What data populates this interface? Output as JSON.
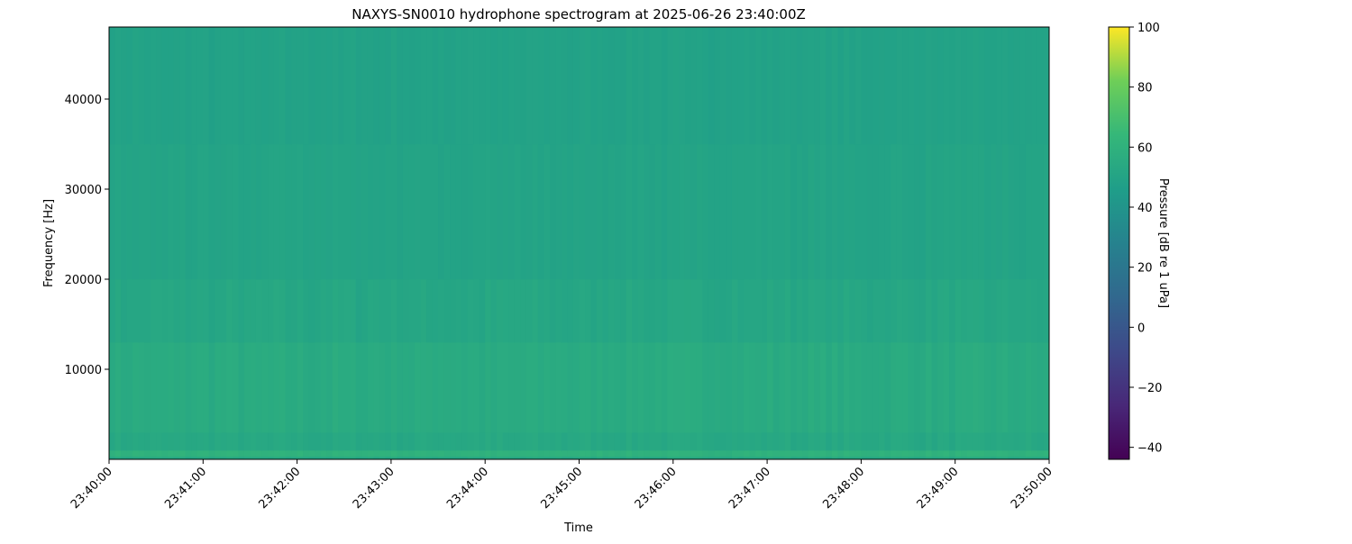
{
  "chart_data": {
    "type": "heatmap",
    "title": "NAXYS-SN0010 hydrophone spectrogram at 2025-06-26 23:40:00Z",
    "xlabel": "Time",
    "ylabel": "Frequency [Hz]",
    "colorbar_label": "Pressure [dB re 1 uPa]",
    "colormap": "viridis",
    "x_ticks": [
      "23:40:00",
      "23:41:00",
      "23:42:00",
      "23:43:00",
      "23:44:00",
      "23:45:00",
      "23:46:00",
      "23:47:00",
      "23:48:00",
      "23:49:00",
      "23:50:00"
    ],
    "xlim": [
      "23:40:00",
      "23:50:00"
    ],
    "y_ticks": [
      10000,
      20000,
      30000,
      40000
    ],
    "ylim": [
      0,
      48000
    ],
    "colorbar_ticks": [
      -40,
      -20,
      0,
      20,
      40,
      60,
      80,
      100
    ],
    "clim": [
      -44,
      100
    ],
    "frequency_bands": [
      {
        "from_hz": 0,
        "to_hz": 300,
        "level_db": 52
      },
      {
        "from_hz": 300,
        "to_hz": 1000,
        "level_db": 60
      },
      {
        "from_hz": 1000,
        "to_hz": 3000,
        "level_db": 53
      },
      {
        "from_hz": 3000,
        "to_hz": 13000,
        "level_db": 55
      },
      {
        "from_hz": 13000,
        "to_hz": 20000,
        "level_db": 52
      },
      {
        "from_hz": 20000,
        "to_hz": 35000,
        "level_db": 50
      },
      {
        "from_hz": 35000,
        "to_hz": 48000,
        "level_db": 49
      }
    ]
  }
}
